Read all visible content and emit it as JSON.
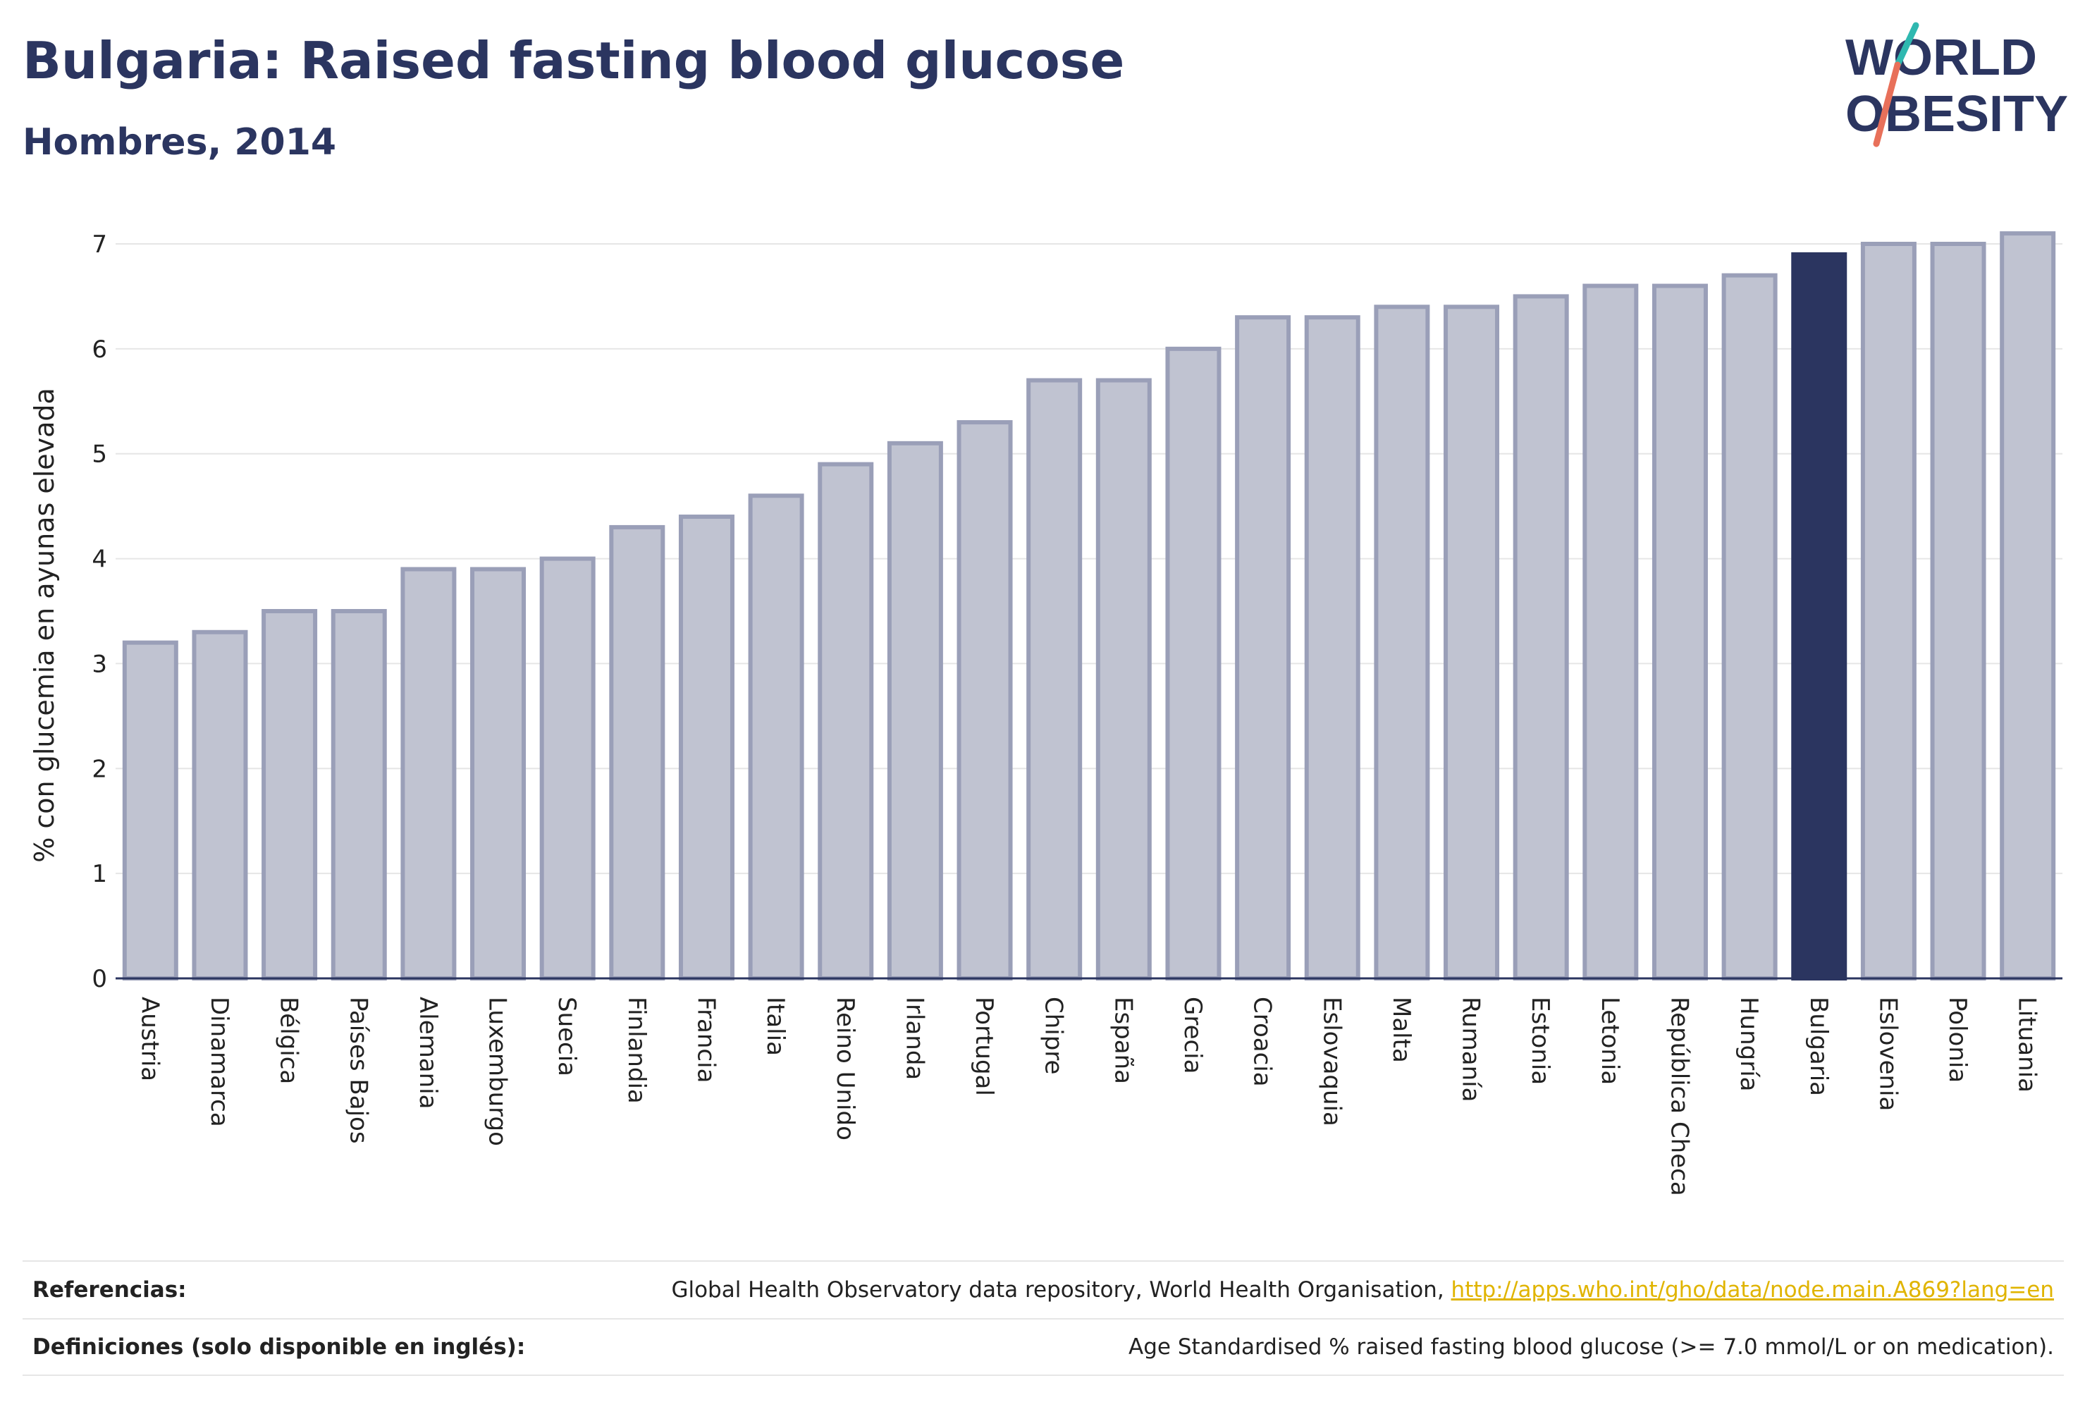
{
  "header": {
    "title": "Bulgaria: Raised fasting blood glucose",
    "subtitle": "Hombres, 2014"
  },
  "logo": {
    "line1": "WORLD",
    "line2": "OBESITY"
  },
  "colors": {
    "text": "#2b3560",
    "bar": "#c0c3d1",
    "bar_border": "#9a9fb8",
    "highlight": "#2b3560",
    "grid": "#e6e6e6",
    "link": "#e0b400",
    "logo_teal": "#2fb8b0",
    "logo_coral": "#e8705a"
  },
  "chart_data": {
    "type": "bar",
    "title": "Bulgaria: Raised fasting blood glucose",
    "subtitle": "Hombres, 2014",
    "xlabel": "",
    "ylabel": "% con glucemia en ayunas elevada",
    "ylim": [
      0,
      7.2
    ],
    "yticks": [
      0,
      1,
      2,
      3,
      4,
      5,
      6,
      7
    ],
    "grid": true,
    "highlight": "Bulgaria",
    "categories": [
      "Austria",
      "Dinamarca",
      "Bélgica",
      "Países Bajos",
      "Alemania",
      "Luxemburgo",
      "Suecia",
      "Finlandia",
      "Francia",
      "Italia",
      "Reino Unido",
      "Irlanda",
      "Portugal",
      "Chipre",
      "España",
      "Grecia",
      "Croacia",
      "Eslovaquia",
      "Malta",
      "Rumanía",
      "Estonia",
      "Letonia",
      "República Checa",
      "Hungría",
      "Bulgaria",
      "Eslovenia",
      "Polonia",
      "Lituania"
    ],
    "values": [
      3.2,
      3.3,
      3.5,
      3.5,
      3.9,
      3.9,
      4.0,
      4.3,
      4.4,
      4.6,
      4.9,
      5.1,
      5.3,
      5.7,
      5.7,
      6.0,
      6.3,
      6.3,
      6.4,
      6.4,
      6.5,
      6.6,
      6.6,
      6.7,
      6.9,
      7.0,
      7.0,
      7.1
    ]
  },
  "footer": {
    "references_label": "Referencias:",
    "references_text": "Global Health Observatory data repository, World Health Organisation, ",
    "references_link": "http://apps.who.int/gho/data/node.main.A869?lang=en",
    "definitions_label": "Definiciones (solo disponible en inglés):",
    "definitions_text": "Age Standardised % raised fasting blood glucose (>= 7.0 mmol/L or on medication)."
  }
}
